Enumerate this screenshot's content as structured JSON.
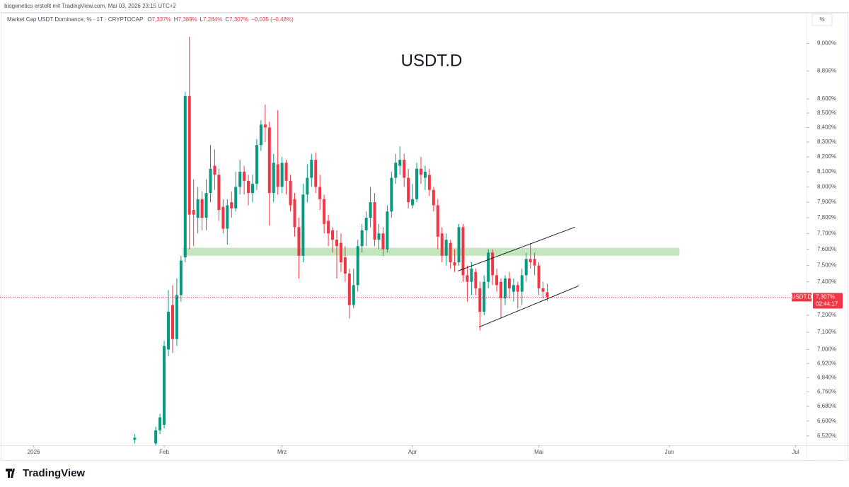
{
  "header": {
    "author_line": "biogenetics erstellt mit TradingView.com, Mai 03, 2026 23:15 UTC+2"
  },
  "chart_data": {
    "type": "candlestick",
    "title": "USDT.D",
    "legend": {
      "symbol": "Market Cap USDT Dominance, % · 1T · CRYPTOCAP",
      "ohlc": [
        {
          "label": "O",
          "value": "7,337%"
        },
        {
          "label": "H",
          "value": "7,389%"
        },
        {
          "label": "L",
          "value": "7,284%"
        },
        {
          "label": "C",
          "value": "7,307%"
        }
      ],
      "change": "−0,035 (−0,48%)"
    },
    "axis_unit": "%",
    "symbol_tag": "USDT.D",
    "last_label": "7,307%",
    "countdown": "02:44:17",
    "log_scale": true,
    "grid": false,
    "up_color": "#089981",
    "down_color": "#f23645",
    "x": [
      24,
      29,
      30,
      31,
      32,
      33,
      34,
      35,
      36,
      37,
      38,
      39,
      40,
      41,
      42,
      43,
      44,
      45,
      46,
      47,
      48,
      49,
      50,
      51,
      52,
      53,
      54,
      55,
      56,
      57,
      58,
      59,
      60,
      61,
      62,
      63,
      64,
      65,
      66,
      67,
      68,
      69,
      70,
      71,
      72,
      73,
      74,
      75,
      76,
      77,
      78,
      79,
      80,
      81,
      82,
      83,
      84,
      85,
      86,
      87,
      88,
      89,
      90,
      91,
      92,
      93,
      94,
      95,
      96,
      97,
      98,
      99,
      100,
      101,
      102,
      103,
      104,
      105,
      106,
      107,
      108,
      109,
      110,
      111,
      112,
      113,
      114,
      115,
      116,
      117,
      118,
      119,
      120,
      121,
      122
    ],
    "open": [
      6.5,
      6.48,
      6.55,
      6.58,
      7.0,
      7.26,
      7.06,
      7.32,
      7.55,
      8.62,
      7.85,
      7.8,
      7.92,
      7.8,
      7.96,
      8.14,
      8.08,
      7.87,
      7.73,
      7.9,
      7.86,
      8.0,
      8.1,
      8.04,
      7.96,
      8.02,
      8.28,
      8.42,
      8.4,
      7.96,
      8.15,
      8.0,
      8.16,
      8.04,
      7.92,
      7.74,
      7.56,
      7.95,
      8.06,
      8.18,
      8.0,
      7.92,
      7.78,
      7.72,
      7.66,
      7.64,
      7.55,
      7.45,
      7.26,
      7.38,
      7.62,
      7.72,
      7.8,
      7.9,
      7.66,
      7.7,
      7.6,
      7.84,
      8.06,
      8.14,
      8.18,
      8.06,
      7.88,
      7.92,
      8.12,
      8.06,
      8.08,
      7.98,
      7.88,
      7.7,
      7.56,
      7.64,
      7.52,
      7.52,
      7.74,
      7.44,
      7.4,
      7.46,
      7.36,
      7.22,
      7.4,
      7.58,
      7.44,
      7.4,
      7.3,
      7.42,
      7.34,
      7.38,
      7.34,
      7.44,
      7.54,
      7.54,
      7.5,
      7.36,
      7.337
    ],
    "high": [
      6.53,
      6.57,
      6.64,
      7.05,
      7.35,
      7.38,
      7.42,
      7.56,
      8.65,
      9.05,
      8.05,
      8.0,
      7.97,
      8.05,
      8.28,
      8.25,
      8.12,
      7.92,
      7.92,
      7.97,
      8.1,
      8.18,
      8.14,
      8.08,
      8.08,
      8.32,
      8.45,
      8.56,
      8.44,
      8.22,
      8.52,
      8.2,
      8.18,
      8.08,
      7.96,
      7.8,
      8.02,
      8.15,
      8.22,
      8.23,
      8.08,
      7.95,
      7.82,
      7.74,
      7.72,
      7.7,
      7.62,
      7.48,
      7.48,
      7.66,
      7.76,
      7.84,
      8.0,
      7.96,
      7.76,
      7.74,
      7.88,
      8.1,
      8.22,
      8.27,
      8.22,
      8.12,
      8.02,
      8.16,
      8.2,
      8.14,
      8.12,
      8.0,
      7.92,
      7.74,
      7.7,
      7.66,
      7.6,
      7.76,
      7.76,
      7.5,
      7.52,
      7.48,
      7.4,
      7.44,
      7.6,
      7.6,
      7.48,
      7.42,
      7.44,
      7.46,
      7.42,
      7.4,
      7.48,
      7.58,
      7.64,
      7.58,
      7.52,
      7.4,
      7.389
    ],
    "low": [
      6.48,
      6.47,
      6.53,
      6.56,
      6.96,
      6.98,
      7.02,
      7.28,
      7.52,
      7.6,
      7.62,
      7.7,
      7.72,
      7.72,
      7.9,
      7.98,
      7.78,
      7.7,
      7.63,
      7.8,
      7.84,
      7.95,
      7.95,
      7.88,
      7.9,
      7.98,
      8.24,
      8.3,
      7.75,
      7.9,
      7.95,
      7.96,
      7.95,
      7.84,
      7.68,
      7.42,
      7.52,
      7.9,
      8.0,
      7.96,
      7.85,
      7.7,
      7.62,
      7.58,
      7.42,
      7.46,
      7.4,
      7.18,
      7.24,
      7.34,
      7.58,
      7.62,
      7.74,
      7.62,
      7.6,
      7.56,
      7.58,
      7.8,
      8.02,
      8.08,
      8.0,
      7.86,
      7.86,
      7.9,
      8.02,
      7.98,
      7.94,
      7.84,
      7.6,
      7.52,
      7.5,
      7.48,
      7.46,
      7.5,
      7.4,
      7.28,
      7.32,
      7.32,
      7.11,
      7.2,
      7.36,
      7.38,
      7.34,
      7.18,
      7.26,
      7.3,
      7.28,
      7.24,
      7.26,
      7.4,
      7.48,
      7.44,
      7.32,
      7.3,
      7.284
    ],
    "close": [
      6.51,
      6.55,
      6.62,
      7.02,
      7.22,
      7.06,
      7.32,
      7.53,
      8.62,
      7.82,
      7.82,
      7.92,
      7.8,
      7.96,
      8.12,
      8.08,
      7.85,
      7.73,
      7.88,
      7.86,
      8.0,
      8.1,
      8.04,
      7.96,
      8.02,
      8.28,
      8.42,
      8.4,
      7.96,
      8.16,
      8.0,
      8.16,
      8.04,
      7.88,
      7.74,
      7.56,
      7.95,
      8.06,
      8.18,
      8.0,
      7.92,
      7.76,
      7.7,
      7.66,
      7.62,
      7.52,
      7.45,
      7.26,
      7.38,
      7.62,
      7.72,
      7.8,
      7.9,
      7.66,
      7.7,
      7.6,
      7.84,
      8.06,
      8.16,
      8.18,
      8.06,
      7.9,
      7.92,
      8.12,
      8.08,
      8.1,
      7.98,
      7.88,
      7.68,
      7.56,
      7.66,
      7.52,
      7.5,
      7.74,
      7.44,
      7.4,
      7.48,
      7.36,
      7.22,
      7.4,
      7.58,
      7.44,
      7.38,
      7.3,
      7.42,
      7.36,
      7.38,
      7.34,
      7.44,
      7.54,
      7.52,
      7.5,
      7.36,
      7.34,
      7.307
    ],
    "zone": {
      "color": "#b9e2b4",
      "x": [
        35.4,
        153.4
      ],
      "y": [
        7.56,
        7.61
      ]
    },
    "trendlines": [
      {
        "x": [
          100.8,
          128.6
        ],
        "y": [
          7.466,
          7.74
        ]
      },
      {
        "x": [
          105.8,
          129.5
        ],
        "y": [
          7.13,
          7.376
        ]
      }
    ],
    "xlim": [
      -8,
      183.6
    ],
    "xticks": [
      {
        "value": 0,
        "label": "2026"
      },
      {
        "value": 31,
        "label": "Feb"
      },
      {
        "value": 59,
        "label": "Mrz"
      },
      {
        "value": 90,
        "label": "Apr"
      },
      {
        "value": 120,
        "label": "Mai"
      },
      {
        "value": 151,
        "label": "Jun"
      },
      {
        "value": 181,
        "label": "Jul"
      }
    ],
    "ylim": [
      6.47,
      9.14
    ],
    "yticks": [
      {
        "value": 9.0,
        "label": "9,000%"
      },
      {
        "value": 8.8,
        "label": "8,800%"
      },
      {
        "value": 8.6,
        "label": "8,600%"
      },
      {
        "value": 8.5,
        "label": "8,500%"
      },
      {
        "value": 8.4,
        "label": "8,400%"
      },
      {
        "value": 8.3,
        "label": "8,300%"
      },
      {
        "value": 8.2,
        "label": "8,200%"
      },
      {
        "value": 8.1,
        "label": "8,100%"
      },
      {
        "value": 8.0,
        "label": "8,000%"
      },
      {
        "value": 7.9,
        "label": "7,900%"
      },
      {
        "value": 7.8,
        "label": "7,800%"
      },
      {
        "value": 7.7,
        "label": "7,700%"
      },
      {
        "value": 7.6,
        "label": "7,600%"
      },
      {
        "value": 7.5,
        "label": "7,500%"
      },
      {
        "value": 7.4,
        "label": "7,400%"
      },
      {
        "value": 7.3,
        "label": "7,300%"
      },
      {
        "value": 7.2,
        "label": "7,200%"
      },
      {
        "value": 7.1,
        "label": "7,100%"
      },
      {
        "value": 7.0,
        "label": "7,000%"
      },
      {
        "value": 6.92,
        "label": "6,920%"
      },
      {
        "value": 6.84,
        "label": "6,840%"
      },
      {
        "value": 6.76,
        "label": "6,760%"
      },
      {
        "value": 6.68,
        "label": "6,680%"
      },
      {
        "value": 6.6,
        "label": "6,600%"
      },
      {
        "value": 6.52,
        "label": "6,520%"
      }
    ]
  },
  "footer": {
    "brand": "TradingView"
  }
}
